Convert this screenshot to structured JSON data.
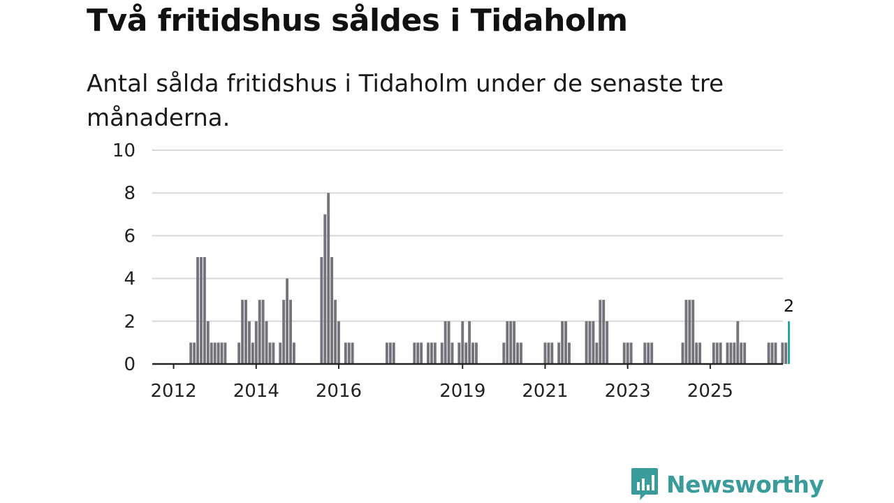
{
  "title": "Två fritidshus såldes i Tidaholm",
  "subtitle": "Antal sålda fritidshus i Tidaholm under de senaste tre månaderna.",
  "brand": {
    "name": "Newsworthy",
    "icon": "newsworthy-logo-icon",
    "color": "#3a9c9a"
  },
  "colors": {
    "bar": "#75737b",
    "highlight": "#0f9a95",
    "grid": "#d9d9d9",
    "axis": "#222222"
  },
  "chart_data": {
    "type": "bar",
    "title": "Två fritidshus såldes i Tidaholm",
    "xlabel": "",
    "ylabel": "",
    "ylim": [
      0,
      10
    ],
    "y_ticks": [
      0,
      2,
      4,
      6,
      8,
      10
    ],
    "x_ticks": [
      {
        "label": "2012",
        "month_index": 5
      },
      {
        "label": "2014",
        "month_index": 29
      },
      {
        "label": "2016",
        "month_index": 53
      },
      {
        "label": "2019",
        "month_index": 89
      },
      {
        "label": "2021",
        "month_index": 113
      },
      {
        "label": "2023",
        "month_index": 137
      },
      {
        "label": "2025",
        "month_index": 161
      }
    ],
    "grid": true,
    "months_per_bar": 1,
    "first_period": "2011-08",
    "values": [
      0,
      0,
      0,
      0,
      0,
      0,
      0,
      0,
      0,
      0,
      1,
      1,
      5,
      5,
      5,
      2,
      1,
      1,
      1,
      1,
      1,
      0,
      0,
      0,
      1,
      3,
      3,
      2,
      1,
      2,
      3,
      3,
      2,
      1,
      1,
      0,
      1,
      3,
      4,
      3,
      1,
      0,
      0,
      0,
      0,
      0,
      0,
      0,
      5,
      7,
      8,
      5,
      3,
      2,
      0,
      1,
      1,
      1,
      0,
      0,
      0,
      0,
      0,
      0,
      0,
      0,
      0,
      1,
      1,
      1,
      0,
      0,
      0,
      0,
      0,
      1,
      1,
      1,
      0,
      1,
      1,
      1,
      0,
      1,
      2,
      2,
      1,
      0,
      1,
      2,
      1,
      2,
      1,
      1,
      0,
      0,
      0,
      0,
      0,
      0,
      0,
      1,
      2,
      2,
      2,
      1,
      1,
      0,
      0,
      0,
      0,
      0,
      0,
      1,
      1,
      1,
      0,
      1,
      2,
      2,
      1,
      0,
      0,
      0,
      0,
      2,
      2,
      2,
      1,
      3,
      3,
      2,
      0,
      0,
      0,
      0,
      1,
      1,
      1,
      0,
      0,
      0,
      1,
      1,
      1,
      0,
      0,
      0,
      0,
      0,
      0,
      0,
      0,
      1,
      3,
      3,
      3,
      1,
      1,
      0,
      0,
      0,
      1,
      1,
      1,
      0,
      1,
      1,
      1,
      2,
      1,
      1,
      0,
      0,
      0,
      0,
      0,
      0,
      1,
      1,
      1,
      0,
      1,
      1,
      2
    ],
    "highlight_last": true,
    "annotations": [
      {
        "text": "2",
        "at": "last"
      }
    ]
  }
}
